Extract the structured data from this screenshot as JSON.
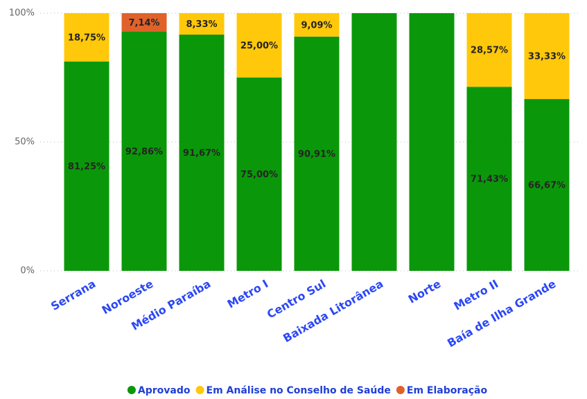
{
  "chart_data": {
    "type": "stacked_bar",
    "categories": [
      "Serrana",
      "Noroeste",
      "Médio Paraíba",
      "Metro I",
      "Centro Sul",
      "Baixada Litorânea",
      "Norte",
      "Metro II",
      "Baía de Ilha Grande"
    ],
    "series": [
      {
        "name": "Aprovado",
        "color": "#0a980a",
        "values": [
          81.25,
          92.86,
          91.67,
          75.0,
          90.91,
          100,
          100,
          71.43,
          66.67
        ],
        "value_labels": [
          "81,25%",
          "92,86%",
          "91,67%",
          "75,00%",
          "90,91%",
          null,
          null,
          "71,43%",
          "66,67%"
        ]
      },
      {
        "name": "Em Análise no Conselho de Saúde",
        "color": "#ffc80a",
        "values": [
          18.75,
          null,
          8.33,
          25.0,
          9.09,
          null,
          null,
          28.57,
          33.33
        ],
        "value_labels": [
          "18,75%",
          null,
          "8,33%",
          "25,00%",
          "9,09%",
          null,
          null,
          "28,57%",
          "33,33%"
        ]
      },
      {
        "name": "Em Elaboração",
        "color": "#e0622a",
        "values": [
          null,
          7.14,
          null,
          null,
          null,
          null,
          null,
          null,
          null
        ],
        "value_labels": [
          null,
          "7,14%",
          null,
          null,
          null,
          null,
          null,
          null,
          null
        ]
      }
    ],
    "ylim": [
      0,
      100
    ],
    "yticks": [
      {
        "value": 0,
        "label": "0%"
      },
      {
        "value": 50,
        "label": "50%"
      },
      {
        "value": 100,
        "label": "100%"
      }
    ],
    "grid": true,
    "legend": "bottom"
  }
}
